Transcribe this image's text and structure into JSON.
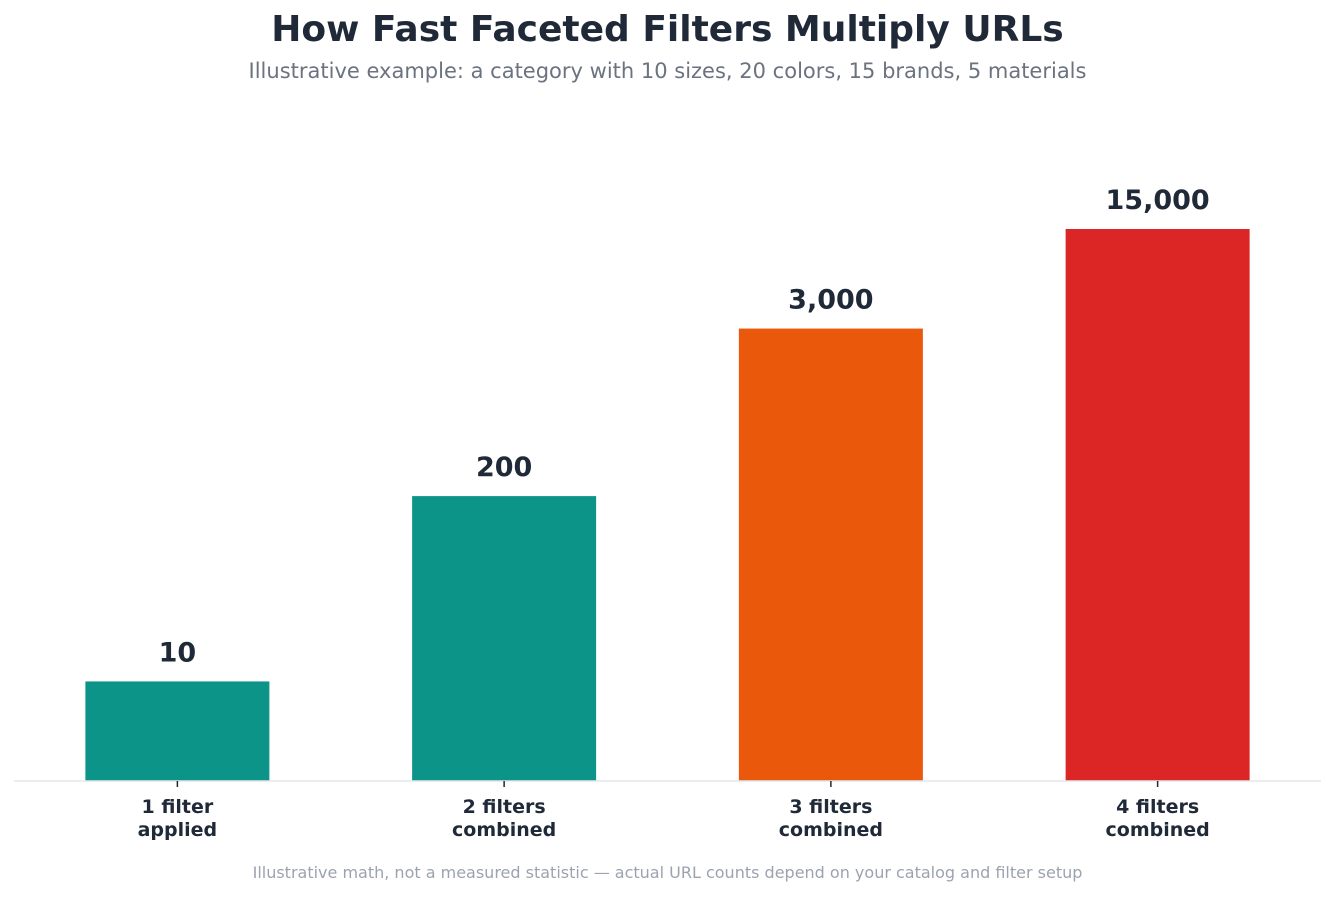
{
  "chart_data": {
    "type": "bar",
    "title": "How Fast Faceted Filters Multiply URLs",
    "subtitle": "Illustrative example: a category with 10 sizes, 20 colors, 15 brands, 5 materials",
    "categories": [
      [
        "1 filter",
        "applied"
      ],
      [
        "2 filters",
        "combined"
      ],
      [
        "3 filters",
        "combined"
      ],
      [
        "4 filters",
        "combined"
      ]
    ],
    "values": [
      10,
      200,
      3000,
      15000
    ],
    "value_labels": [
      "10",
      "200",
      "3,000",
      "15,000"
    ],
    "bar_colors": [
      "#0d9488",
      "#0d9488",
      "#ea580c",
      "#dc2626"
    ],
    "y_scale": "log",
    "ylim": [
      2,
      15000
    ],
    "xlabel": "",
    "ylabel": "",
    "grid": false,
    "legend": "none",
    "footnote": "Illustrative math, not a measured statistic — actual URL counts depend on your catalog and filter setup"
  }
}
